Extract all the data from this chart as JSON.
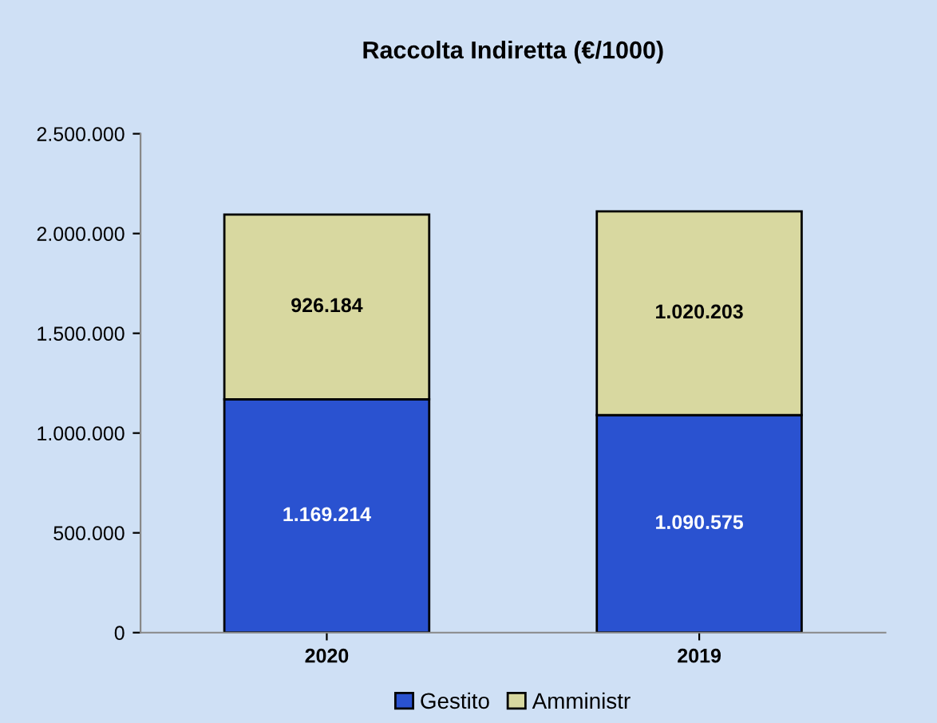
{
  "chart_data": {
    "type": "bar",
    "title": "Raccolta Indiretta (€/1000)",
    "stacked": true,
    "categories": [
      "2020",
      "2019"
    ],
    "series": [
      {
        "name": "Gestito",
        "color": "#2a52d0",
        "values": [
          1169214,
          1090575
        ],
        "value_labels": [
          "1.169.214",
          "1.090.575"
        ]
      },
      {
        "name": "Amministr",
        "color": "#d8d8a0",
        "values": [
          926184,
          1020203
        ],
        "value_labels": [
          "926.184",
          "1.020.203"
        ]
      }
    ],
    "ylim": [
      0,
      2500000
    ],
    "yticks": [
      0,
      {
        "value": 500000,
        "label": "500.000"
      },
      {
        "value": 1000000,
        "label": "1.000.000"
      },
      {
        "value": 1500000,
        "label": "1.500.000"
      },
      {
        "value": 2000000,
        "label": "2.000.000"
      },
      {
        "value": 2500000,
        "label": "2.500.000"
      }
    ],
    "grid": false,
    "legend": "bottom"
  }
}
